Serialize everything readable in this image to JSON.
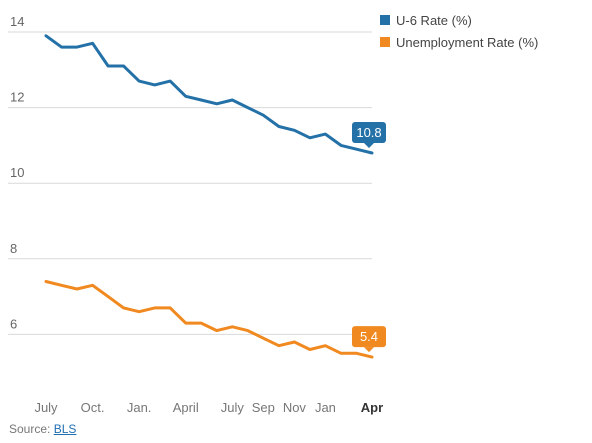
{
  "chart_data": {
    "type": "line",
    "title": "",
    "xlabel": "",
    "ylabel": "",
    "ylim": [
      5,
      14
    ],
    "y_ticks": [
      6,
      8,
      10,
      12,
      14
    ],
    "x_tick_labels": [
      "July",
      "Oct.",
      "Jan.",
      "April",
      "July",
      "Sep",
      "Nov",
      "Jan",
      "Apr"
    ],
    "x_tick_index": [
      0,
      3,
      6,
      9,
      12,
      14,
      16,
      18,
      21
    ],
    "grid": true,
    "legend": "top-right",
    "series": [
      {
        "name": "U-6 Rate (%)",
        "color": "#2471a8",
        "values": [
          13.9,
          13.6,
          13.6,
          13.7,
          13.1,
          13.1,
          12.7,
          12.6,
          12.7,
          12.3,
          12.2,
          12.1,
          12.2,
          12.0,
          11.8,
          11.5,
          11.4,
          11.2,
          11.3,
          11.0,
          10.9,
          10.8
        ],
        "end_label": "10.8"
      },
      {
        "name": "Unemployment Rate (%)",
        "color": "#f0891f",
        "values": [
          7.4,
          7.3,
          7.2,
          7.3,
          7.0,
          6.7,
          6.6,
          6.7,
          6.7,
          6.3,
          6.3,
          6.1,
          6.2,
          6.1,
          5.9,
          5.7,
          5.8,
          5.6,
          5.7,
          5.5,
          5.5,
          5.4
        ],
        "end_label": "5.4"
      }
    ]
  },
  "source": {
    "prefix": "Source: ",
    "link_label": "BLS"
  }
}
